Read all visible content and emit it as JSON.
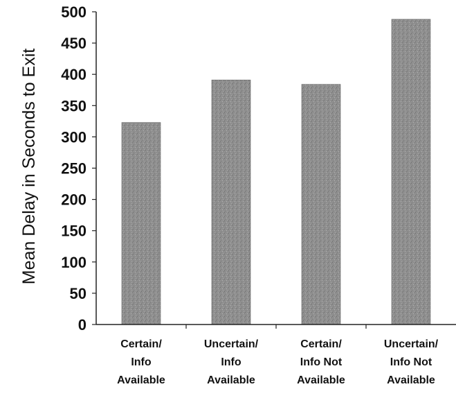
{
  "chart_data": {
    "type": "bar",
    "title": "",
    "xlabel": "",
    "ylabel": "Mean Delay in Seconds to Exit",
    "categories": [
      [
        "Certain/",
        "Info",
        "Available"
      ],
      [
        "Uncertain/",
        "Info",
        "Available"
      ],
      [
        "Certain/",
        "Info Not",
        "Available"
      ],
      [
        "Uncertain/",
        "Info Not",
        "Available"
      ]
    ],
    "values": [
      323,
      391,
      384,
      488
    ],
    "ylim": [
      0,
      500
    ],
    "yticks": [
      0,
      50,
      100,
      150,
      200,
      250,
      300,
      350,
      400,
      450,
      500
    ],
    "grid": false,
    "legend": "none",
    "colors": {
      "bar_fill": "#8f8f8f",
      "bar_texture_dark": "#6e6e6e",
      "bar_texture_light": "#b3b3b3",
      "axis": "#222222",
      "text": "#111111"
    }
  }
}
